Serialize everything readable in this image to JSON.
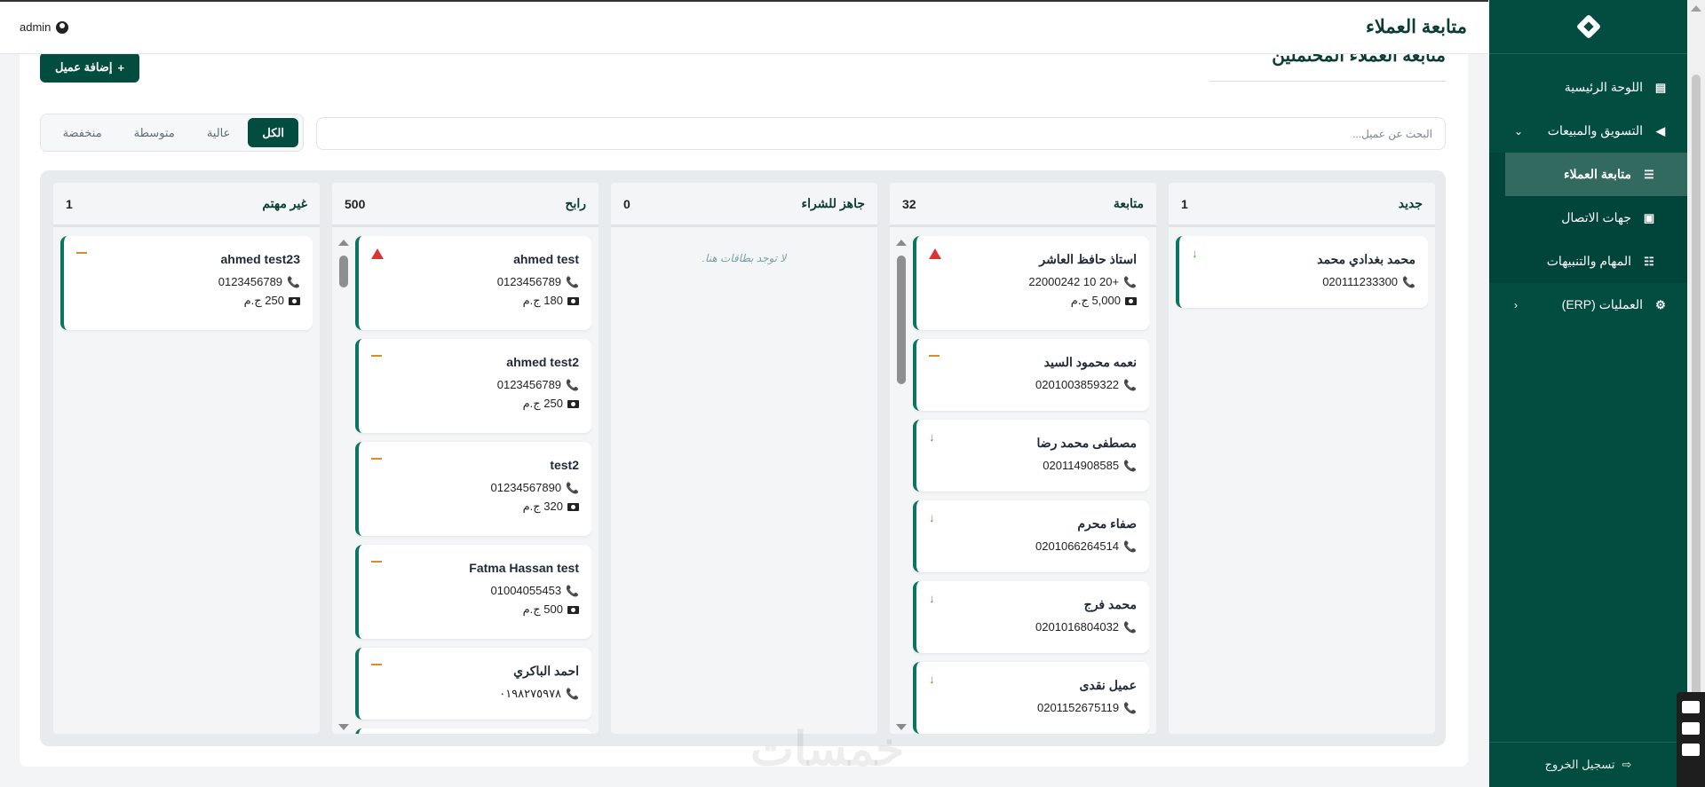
{
  "header": {
    "title": "متابعة العملاء",
    "user": "admin"
  },
  "page": {
    "section_title": "متابعة العملاء المحتملين",
    "add_button": "إضافة عميل",
    "search_placeholder": "البحث عن عميل...",
    "filters": [
      {
        "label": "الكل",
        "active": true
      },
      {
        "label": "عالية"
      },
      {
        "label": "متوسطة"
      },
      {
        "label": "منخفضة"
      }
    ]
  },
  "board": {
    "columns": [
      {
        "title": "جديد",
        "count": "1",
        "scroll": false,
        "cards": [
          {
            "name": "محمد بغدادي محمد",
            "phone": "020111233300",
            "priority": "low"
          }
        ]
      },
      {
        "title": "متابعة",
        "count": "32",
        "scroll": true,
        "thumb": "0.24",
        "cards": [
          {
            "name": "استاذ حافظ العاشر",
            "phone": "+20 10 22000242",
            "amount": "5,000 ج.م",
            "priority": "high"
          },
          {
            "name": "نعمه محمود السيد",
            "phone": "0201003859322",
            "priority": "medium"
          },
          {
            "name": "مصطفى محمد رضا",
            "phone": "020114908585",
            "priority": "low"
          },
          {
            "name": "صفاء محرم",
            "phone": "0201066264514",
            "priority": "low"
          },
          {
            "name": "محمد فرج",
            "phone": "0201016804032",
            "priority": "low"
          },
          {
            "name": "عميل نقدى",
            "phone": "0201152675119",
            "priority": "low"
          }
        ]
      },
      {
        "title": "جاهز للشراء",
        "count": "0",
        "scroll": false,
        "empty_text": "لا توجد بطاقات هنا.",
        "cards": []
      },
      {
        "title": "رابح",
        "count": "500",
        "scroll": true,
        "thumb": "0.03",
        "cards": [
          {
            "name": "ahmed test",
            "phone": "0123456789",
            "amount": "180 ج.م",
            "priority": "high"
          },
          {
            "name": "ahmed test2",
            "phone": "0123456789",
            "amount": "250 ج.م",
            "priority": "medium"
          },
          {
            "name": "test2",
            "phone": "01234567890",
            "amount": "320 ج.م",
            "priority": "medium"
          },
          {
            "name": "Fatma Hassan test",
            "phone": "01004055453",
            "amount": "500 ج.م",
            "priority": "medium"
          },
          {
            "name": "احمد الباكري",
            "phone": "٠١٩٨٢٧٥٩٧٨",
            "priority": "medium"
          },
          {
            "name": "",
            "phone": "",
            "priority": ""
          }
        ]
      },
      {
        "title": "غير مهتم",
        "count": "1",
        "scroll": false,
        "cards": [
          {
            "name": "ahmed test23",
            "phone": "0123456789",
            "amount": "250 ج.م",
            "priority": "medium"
          }
        ]
      }
    ]
  },
  "sidebar": {
    "items": [
      {
        "label": "اللوحة الرئيسية",
        "icon": "chart-icon"
      },
      {
        "label": "التسويق والمبيعات",
        "icon": "megaphone-icon",
        "expanded": true,
        "children": [
          {
            "label": "متابعة العملاء",
            "icon": "list-icon",
            "active": true
          },
          {
            "label": "جهات الاتصال",
            "icon": "contact-book-icon"
          },
          {
            "label": "المهام والتنبيهات",
            "icon": "tasks-icon"
          }
        ]
      },
      {
        "label": "العمليات (ERP)",
        "icon": "gears-icon"
      }
    ],
    "logout": "تسجيل الخروج"
  },
  "watermark": "خمسات",
  "colors": {
    "brand": "#024d3f",
    "card_accent": "#0a7563",
    "high": "#dc3535",
    "medium": "#e08a2e",
    "low": "#4c9a3a"
  }
}
